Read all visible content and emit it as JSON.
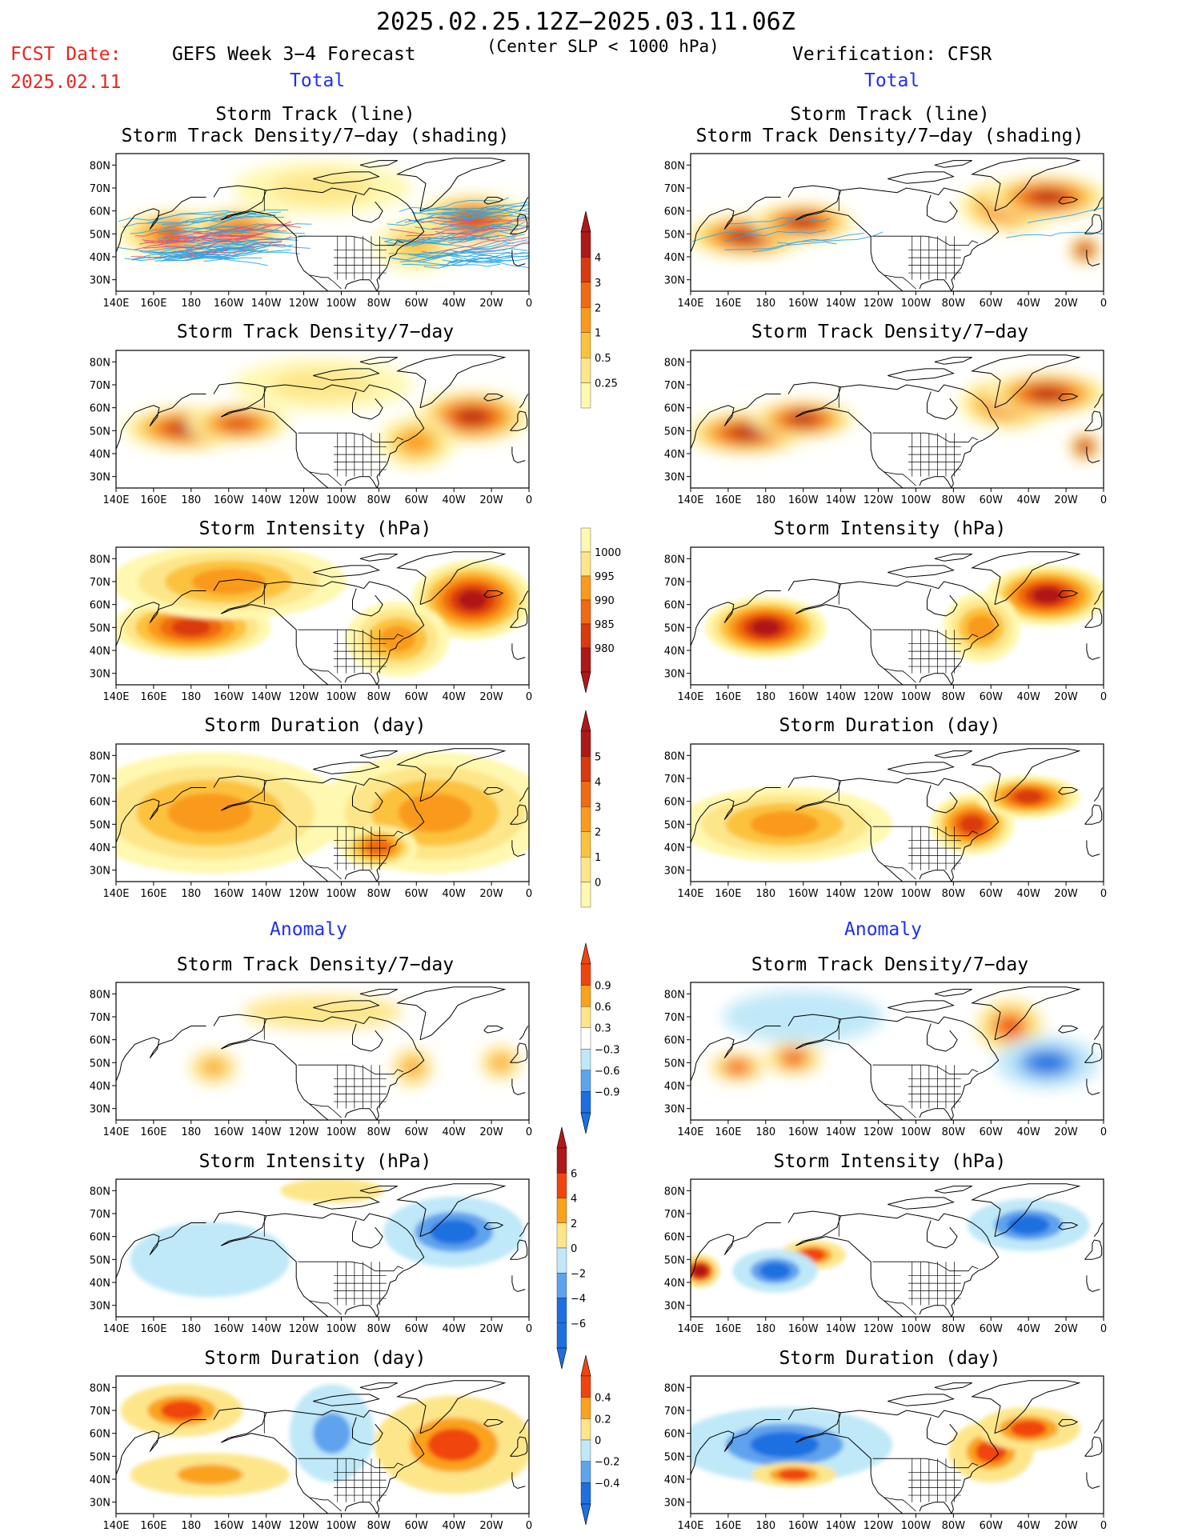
{
  "header": {
    "date_range": "2025.02.25.12Z−2025.03.11.06Z",
    "criterion": "(Center SLP < 1000 hPa)",
    "fcst_label": "FCST Date:",
    "fcst_date": "2025.02.11",
    "forecast_title": "GEFS Week 3−4 Forecast",
    "verification_title": "Verification: CFSR",
    "total_label": "Total",
    "anomaly_label": "Anomaly"
  },
  "axes": {
    "lon_ticks": [
      "140E",
      "160E",
      "180",
      "160W",
      "140W",
      "120W",
      "100W",
      "80W",
      "60W",
      "40W",
      "20W",
      "0"
    ],
    "lat_ticks": [
      "80N",
      "70N",
      "60N",
      "50N",
      "40N",
      "30N"
    ]
  },
  "panel_titles": {
    "track": [
      "Storm Track (line)",
      "Storm Track Density/7−day (shading)"
    ],
    "density": "Storm Track Density/7−day",
    "intensity": "Storm Intensity (hPa)",
    "duration": "Storm Duration (day)"
  },
  "colorbars": {
    "density_total": [
      "0.25",
      "0.5",
      "1",
      "2",
      "3",
      "4"
    ],
    "intensity_total": [
      "1000",
      "995",
      "990",
      "985",
      "980"
    ],
    "duration_total": [
      "0",
      "1",
      "2",
      "3",
      "4",
      "5"
    ],
    "density_anom": [
      "0.9",
      "0.6",
      "0.3",
      "−0.3",
      "−0.6",
      "−0.9"
    ],
    "intensity_anom": [
      "6",
      "4",
      "2",
      "0",
      "−2",
      "−4",
      "−6"
    ],
    "duration_anom": [
      "0.4",
      "0.2",
      "0",
      "−0.2",
      "−0.4"
    ]
  },
  "colors": {
    "seq": [
      "#fff8b0",
      "#fde68a",
      "#fcc23c",
      "#f99a1c",
      "#f06a10",
      "#d93a10",
      "#b01818"
    ],
    "div": [
      "#1e6fe0",
      "#5ea3ee",
      "#bfe8f8",
      "#ffffff",
      "#fde68a",
      "#fba21c",
      "#f0440e",
      "#b01818"
    ],
    "track_line": "#2aa6e8",
    "track_line_fcst_core": "#e0507a"
  },
  "chart_data": [
    {
      "type": "heatmap",
      "panel": "fcst-total-track",
      "title": "Storm Track (line) / Storm Track Density/7-day (shading)",
      "scale": "seq",
      "xlim": [
        140,
        360
      ],
      "ylim": [
        25,
        85
      ],
      "blobs": [
        {
          "lon": 175,
          "lat": 50,
          "w": 32,
          "h": 9,
          "v": 5
        },
        {
          "lon": 205,
          "lat": 52,
          "w": 26,
          "h": 8,
          "v": 4
        },
        {
          "lon": 330,
          "lat": 56,
          "w": 28,
          "h": 10,
          "v": 5
        },
        {
          "lon": 300,
          "lat": 45,
          "w": 20,
          "h": 10,
          "v": 2
        },
        {
          "lon": 250,
          "lat": 70,
          "w": 45,
          "h": 10,
          "v": 1
        }
      ],
      "tracks": "many"
    },
    {
      "type": "heatmap",
      "panel": "cfsr-total-track",
      "title": "Storm Track (line) / Storm Track Density/7-day (shading)",
      "scale": "seq",
      "xlim": [
        140,
        360
      ],
      "ylim": [
        25,
        85
      ],
      "blobs": [
        {
          "lon": 170,
          "lat": 49,
          "w": 30,
          "h": 8,
          "v": 6
        },
        {
          "lon": 200,
          "lat": 55,
          "w": 25,
          "h": 7,
          "v": 6
        },
        {
          "lon": 310,
          "lat": 62,
          "w": 25,
          "h": 10,
          "v": 5
        },
        {
          "lon": 330,
          "lat": 66,
          "w": 30,
          "h": 8,
          "v": 6
        },
        {
          "lon": 350,
          "lat": 43,
          "w": 6,
          "h": 5,
          "v": 6
        }
      ],
      "tracks": "few"
    },
    {
      "type": "heatmap",
      "panel": "fcst-total-density",
      "title": "Storm Track Density/7-day",
      "scale": "seq",
      "xlim": [
        140,
        360
      ],
      "ylim": [
        25,
        85
      ],
      "blobs": [
        {
          "lon": 178,
          "lat": 51,
          "w": 32,
          "h": 8,
          "v": 6
        },
        {
          "lon": 205,
          "lat": 53,
          "w": 25,
          "h": 7,
          "v": 5
        },
        {
          "lon": 330,
          "lat": 56,
          "w": 28,
          "h": 10,
          "v": 6
        },
        {
          "lon": 300,
          "lat": 45,
          "w": 18,
          "h": 10,
          "v": 3
        },
        {
          "lon": 250,
          "lat": 70,
          "w": 45,
          "h": 10,
          "v": 1
        }
      ]
    },
    {
      "type": "heatmap",
      "panel": "cfsr-total-density",
      "title": "Storm Track Density/7-day",
      "scale": "seq",
      "xlim": [
        140,
        360
      ],
      "ylim": [
        25,
        85
      ],
      "blobs": [
        {
          "lon": 170,
          "lat": 49,
          "w": 30,
          "h": 8,
          "v": 6
        },
        {
          "lon": 200,
          "lat": 55,
          "w": 25,
          "h": 7,
          "v": 6
        },
        {
          "lon": 310,
          "lat": 62,
          "w": 25,
          "h": 10,
          "v": 5
        },
        {
          "lon": 330,
          "lat": 66,
          "w": 30,
          "h": 8,
          "v": 6
        },
        {
          "lon": 350,
          "lat": 43,
          "w": 6,
          "h": 5,
          "v": 6
        }
      ]
    },
    {
      "type": "heatmap",
      "panel": "fcst-total-intensity",
      "title": "Storm Intensity (hPa)",
      "scale": "seq",
      "xlim": [
        140,
        360
      ],
      "ylim": [
        25,
        85
      ],
      "blobs": [
        {
          "lon": 180,
          "lat": 50,
          "w": 40,
          "h": 12,
          "v": 5
        },
        {
          "lon": 330,
          "lat": 62,
          "w": 30,
          "h": 16,
          "v": 6
        },
        {
          "lon": 200,
          "lat": 70,
          "w": 60,
          "h": 15,
          "v": 3
        },
        {
          "lon": 290,
          "lat": 45,
          "w": 25,
          "h": 15,
          "v": 3
        }
      ]
    },
    {
      "type": "heatmap",
      "panel": "cfsr-total-intensity",
      "title": "Storm Intensity (hPa)",
      "scale": "seq",
      "xlim": [
        140,
        360
      ],
      "ylim": [
        25,
        85
      ],
      "blobs": [
        {
          "lon": 180,
          "lat": 50,
          "w": 30,
          "h": 12,
          "v": 6
        },
        {
          "lon": 330,
          "lat": 64,
          "w": 30,
          "h": 12,
          "v": 6
        },
        {
          "lon": 295,
          "lat": 50,
          "w": 18,
          "h": 14,
          "v": 3
        }
      ]
    },
    {
      "type": "heatmap",
      "panel": "fcst-total-duration",
      "title": "Storm Duration (day)",
      "scale": "seq",
      "xlim": [
        140,
        360
      ],
      "ylim": [
        25,
        85
      ],
      "blobs": [
        {
          "lon": 190,
          "lat": 55,
          "w": 70,
          "h": 25,
          "v": 3
        },
        {
          "lon": 310,
          "lat": 55,
          "w": 60,
          "h": 25,
          "v": 3
        },
        {
          "lon": 280,
          "lat": 40,
          "w": 18,
          "h": 8,
          "v": 4
        }
      ]
    },
    {
      "type": "heatmap",
      "panel": "cfsr-total-duration",
      "title": "Storm Duration (day)",
      "scale": "seq",
      "xlim": [
        140,
        360
      ],
      "ylim": [
        25,
        85
      ],
      "blobs": [
        {
          "lon": 190,
          "lat": 50,
          "w": 55,
          "h": 15,
          "v": 3
        },
        {
          "lon": 290,
          "lat": 50,
          "w": 20,
          "h": 12,
          "v": 5
        },
        {
          "lon": 320,
          "lat": 62,
          "w": 25,
          "h": 8,
          "v": 5
        }
      ]
    },
    {
      "type": "heatmap",
      "panel": "fcst-anom-density",
      "title": "Storm Track Density/7-day",
      "scale": "div",
      "xlim": [
        140,
        360
      ],
      "ylim": [
        25,
        85
      ],
      "blobs": [
        {
          "lon": 192,
          "lat": 48,
          "w": 10,
          "h": 6,
          "v": 2
        },
        {
          "lon": 298,
          "lat": 48,
          "w": 8,
          "h": 7,
          "v": 2
        },
        {
          "lon": 345,
          "lat": 50,
          "w": 8,
          "h": 6,
          "v": 2
        },
        {
          "lon": 250,
          "lat": 72,
          "w": 40,
          "h": 6,
          "v": 1
        }
      ]
    },
    {
      "type": "heatmap",
      "panel": "cfsr-anom-density",
      "title": "Storm Track Density/7-day",
      "scale": "div",
      "xlim": [
        140,
        360
      ],
      "ylim": [
        25,
        85
      ],
      "blobs": [
        {
          "lon": 165,
          "lat": 48,
          "w": 12,
          "h": 5,
          "v": 3
        },
        {
          "lon": 195,
          "lat": 52,
          "w": 12,
          "h": 6,
          "v": 3
        },
        {
          "lon": 310,
          "lat": 66,
          "w": 15,
          "h": 10,
          "v": 3
        },
        {
          "lon": 330,
          "lat": 50,
          "w": 25,
          "h": 10,
          "v": -3
        },
        {
          "lon": 200,
          "lat": 70,
          "w": 40,
          "h": 10,
          "v": -1
        }
      ]
    },
    {
      "type": "heatmap",
      "panel": "fcst-anom-intensity",
      "title": "Storm Intensity (hPa)",
      "scale": "div",
      "xlim": [
        140,
        360
      ],
      "ylim": [
        25,
        85
      ],
      "blobs": [
        {
          "lon": 320,
          "lat": 62,
          "w": 35,
          "h": 14,
          "v": -3
        },
        {
          "lon": 190,
          "lat": 50,
          "w": 40,
          "h": 15,
          "v": -1
        },
        {
          "lon": 255,
          "lat": 80,
          "w": 25,
          "h": 4,
          "v": 1
        }
      ]
    },
    {
      "type": "heatmap",
      "panel": "cfsr-anom-intensity",
      "title": "Storm Intensity (hPa)",
      "scale": "div",
      "xlim": [
        140,
        360
      ],
      "ylim": [
        25,
        85
      ],
      "blobs": [
        {
          "lon": 145,
          "lat": 45,
          "w": 8,
          "h": 6,
          "v": 4
        },
        {
          "lon": 205,
          "lat": 52,
          "w": 15,
          "h": 5,
          "v": 3
        },
        {
          "lon": 320,
          "lat": 65,
          "w": 30,
          "h": 10,
          "v": -3
        },
        {
          "lon": 185,
          "lat": 45,
          "w": 20,
          "h": 8,
          "v": -3
        }
      ]
    },
    {
      "type": "heatmap",
      "panel": "fcst-anom-duration",
      "title": "Storm Duration (day)",
      "scale": "div",
      "xlim": [
        140,
        360
      ],
      "ylim": [
        25,
        85
      ],
      "blobs": [
        {
          "lon": 175,
          "lat": 70,
          "w": 30,
          "h": 10,
          "v": 3
        },
        {
          "lon": 320,
          "lat": 55,
          "w": 40,
          "h": 20,
          "v": 3
        },
        {
          "lon": 190,
          "lat": 42,
          "w": 40,
          "h": 8,
          "v": 2
        },
        {
          "lon": 255,
          "lat": 60,
          "w": 20,
          "h": 20,
          "v": -2
        }
      ]
    },
    {
      "type": "heatmap",
      "panel": "cfsr-anom-duration",
      "title": "Storm Duration (day)",
      "scale": "div",
      "xlim": [
        140,
        360
      ],
      "ylim": [
        25,
        85
      ],
      "blobs": [
        {
          "lon": 190,
          "lat": 55,
          "w": 55,
          "h": 15,
          "v": -3
        },
        {
          "lon": 300,
          "lat": 52,
          "w": 20,
          "h": 12,
          "v": 3
        },
        {
          "lon": 320,
          "lat": 62,
          "w": 25,
          "h": 8,
          "v": 3
        },
        {
          "lon": 195,
          "lat": 42,
          "w": 20,
          "h": 4,
          "v": 3
        }
      ]
    }
  ]
}
